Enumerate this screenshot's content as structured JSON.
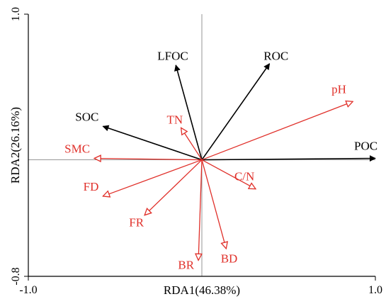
{
  "chart_data": {
    "type": "biplot",
    "xlabel": "RDA1(46.38%)",
    "ylabel": "RDA2(26.16%)",
    "xlim": [
      -1.0,
      1.0
    ],
    "ylim": [
      -0.8,
      1.0
    ],
    "x_ticks": [
      {
        "value": -1.0,
        "label": "-1.0"
      },
      {
        "value": 1.0,
        "label": "1.0"
      }
    ],
    "y_ticks": [
      {
        "value": -0.8,
        "label": "-0.8"
      },
      {
        "value": 1.0,
        "label": "1.0"
      }
    ],
    "series": [
      {
        "color": "#000000",
        "vectors": [
          {
            "label": "LFOC",
            "x": -0.15,
            "y": 0.65
          },
          {
            "label": "ROC",
            "x": 0.39,
            "y": 0.66
          },
          {
            "label": "SOC",
            "x": -0.57,
            "y": 0.23
          },
          {
            "label": "POC",
            "x": 1.0,
            "y": 0.01
          }
        ]
      },
      {
        "color": "#e0302a",
        "vectors": [
          {
            "label": "pH",
            "x": 0.87,
            "y": 0.4
          },
          {
            "label": "TN",
            "x": -0.12,
            "y": 0.22
          },
          {
            "label": "SMC",
            "x": -0.62,
            "y": 0.01
          },
          {
            "label": "FD",
            "x": -0.57,
            "y": -0.25
          },
          {
            "label": "FR",
            "x": -0.33,
            "y": -0.38
          },
          {
            "label": "C/N",
            "x": 0.31,
            "y": -0.2
          },
          {
            "label": "BD",
            "x": 0.14,
            "y": -0.61
          },
          {
            "label": "BR",
            "x": -0.02,
            "y": -0.69
          }
        ]
      }
    ]
  }
}
